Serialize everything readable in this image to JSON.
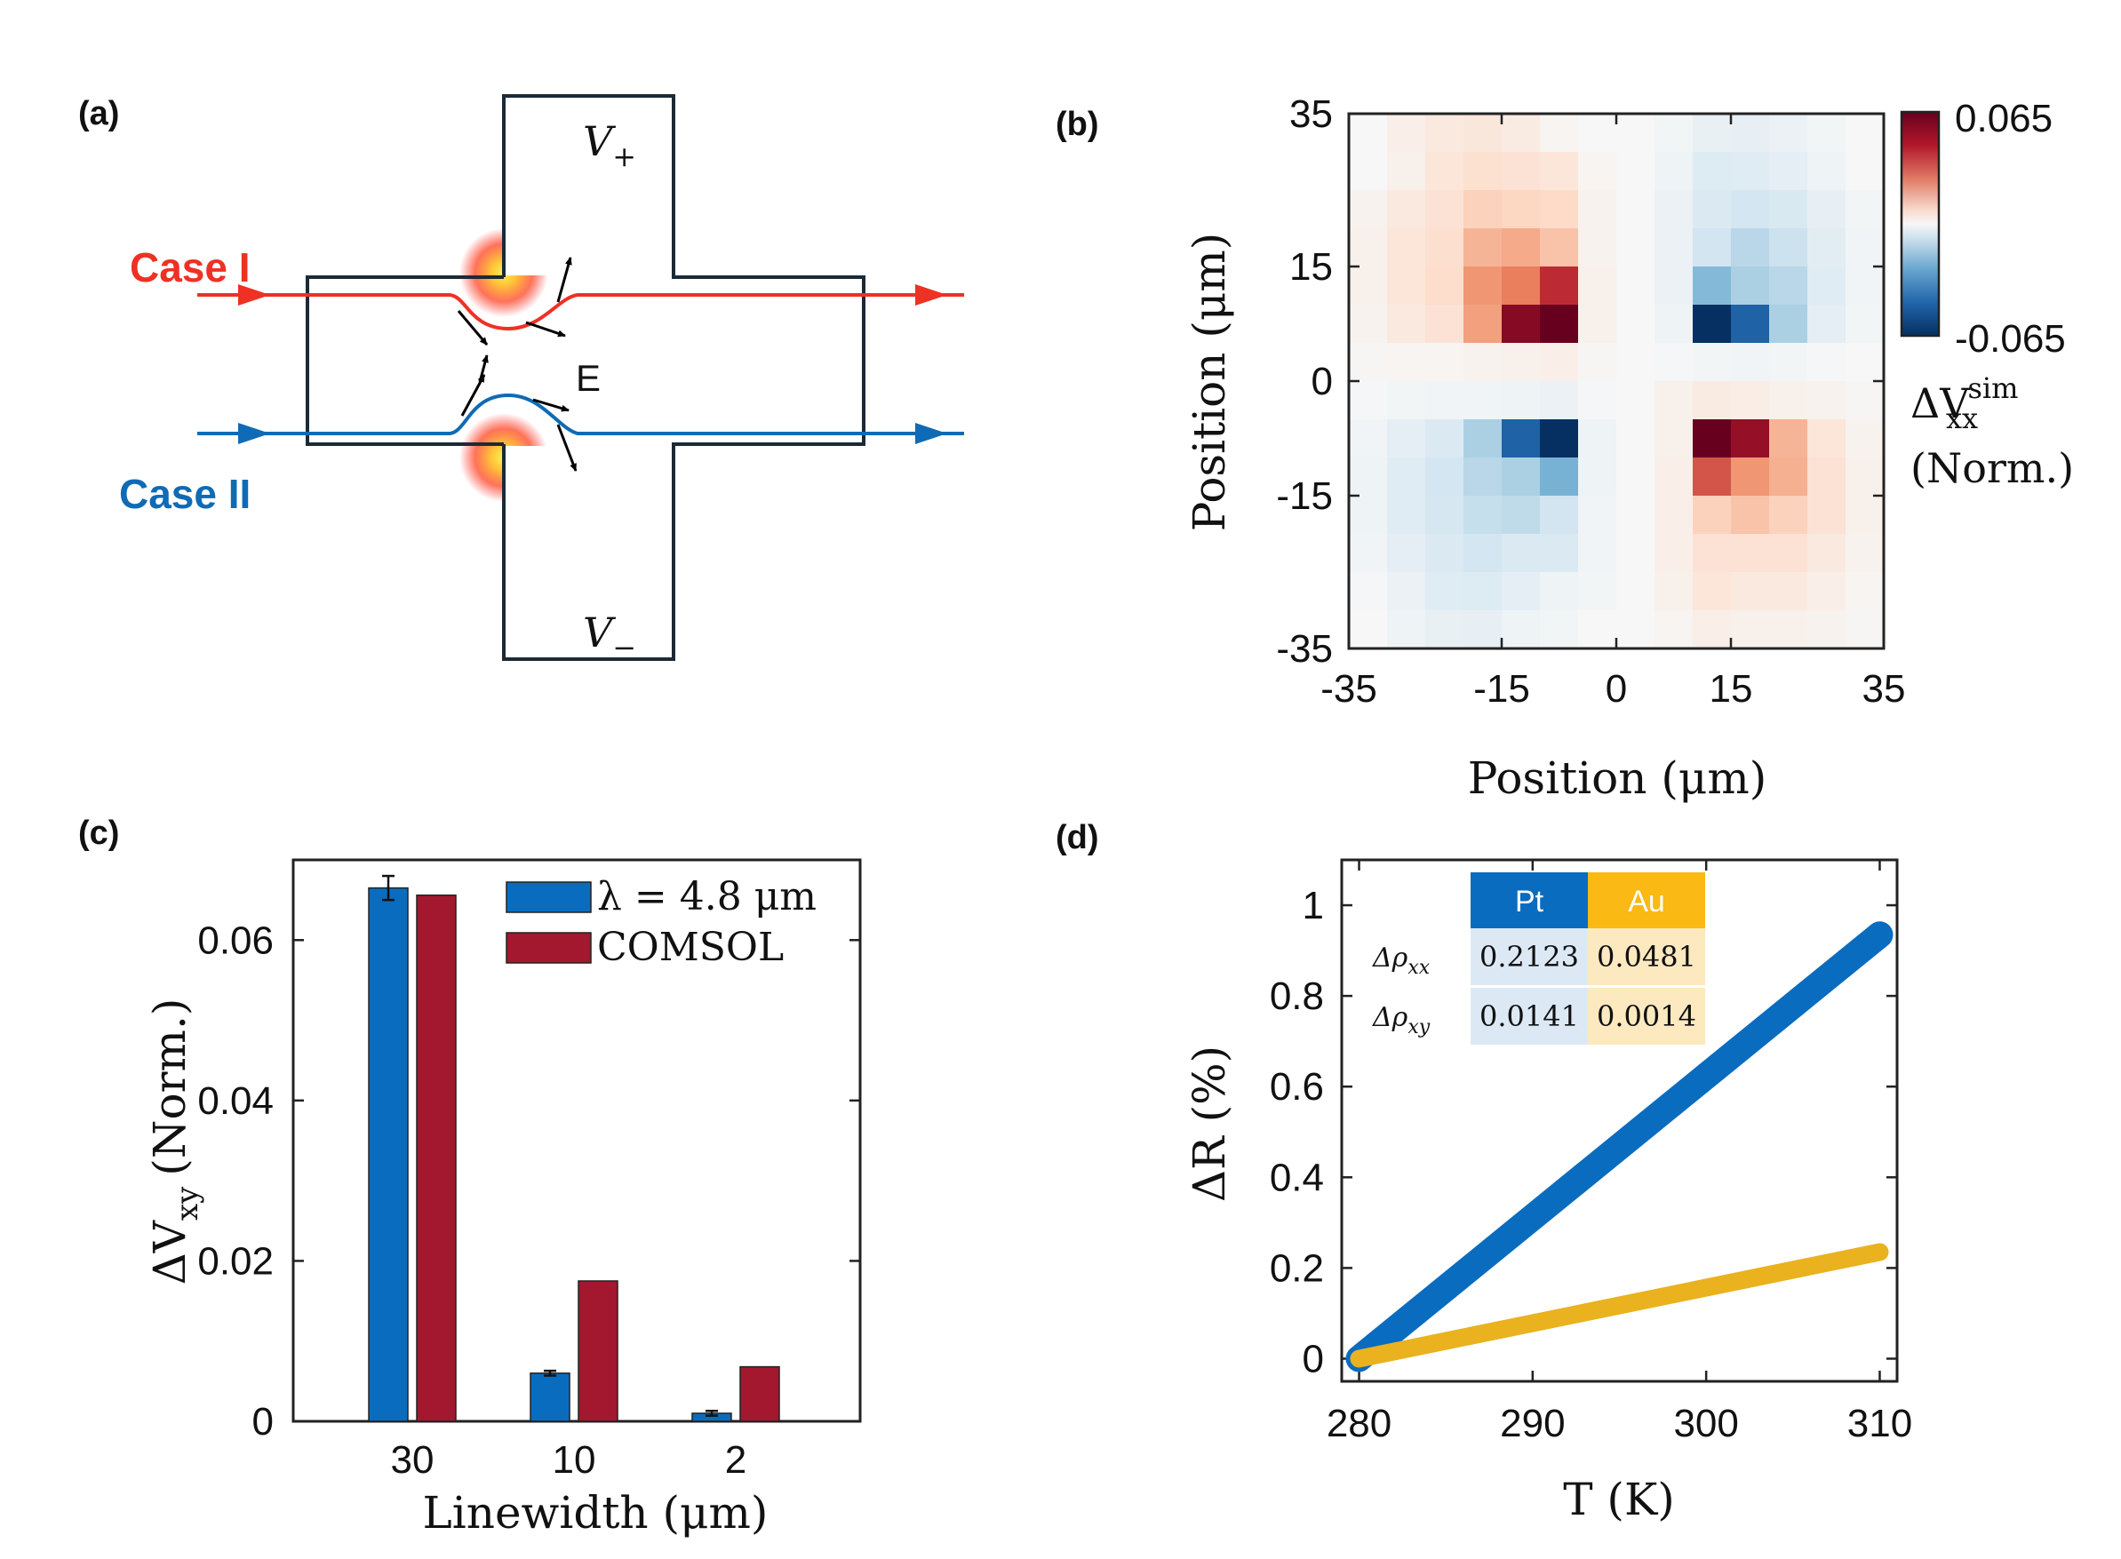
{
  "panel_labels": {
    "a": "(a)",
    "b": "(b)",
    "c": "(c)",
    "d": "(d)"
  },
  "colors": {
    "red": "#ee3124",
    "blue": "#0f6bb5",
    "pt_blue": "#0a6cbf",
    "au_gold": "#e9b21e",
    "comsol_red": "#a3172f",
    "frame": "#1c2a36"
  },
  "diagram": {
    "case1_label": "Case I",
    "case2_label": "Case II",
    "field_label": "E",
    "vplus": "V",
    "vplus_sub": "+",
    "vminus": "V",
    "vminus_sub": "−"
  },
  "chart_data": [
    {
      "panel": "b",
      "type": "heatmap",
      "xlabel": "Position (μm)",
      "ylabel": "Position (μm)",
      "xlim": [
        -35,
        35
      ],
      "ylim": [
        -35,
        35
      ],
      "x_ticks": [
        "-35",
        "-15",
        "0",
        "15",
        "35"
      ],
      "y_ticks": [
        "35",
        "15",
        "0",
        "-15",
        "-35"
      ],
      "colorbar": {
        "max_label": "0.065",
        "min_label": "-0.065",
        "title": "ΔV",
        "title_sub": "xx",
        "title_sup": "sim",
        "title_unit": "(Norm.)",
        "min": -0.065,
        "max": 0.065
      },
      "grid_values": [
        [
          0.0,
          0.005,
          0.008,
          0.009,
          0.007,
          0.002,
          0.0,
          0.0,
          -0.002,
          -0.006,
          -0.007,
          -0.005,
          -0.002,
          0.0
        ],
        [
          0.0,
          0.004,
          0.01,
          0.013,
          0.012,
          0.01,
          0.002,
          0.0,
          -0.004,
          -0.011,
          -0.01,
          -0.008,
          -0.004,
          0.0
        ],
        [
          0.003,
          0.008,
          0.012,
          0.018,
          0.017,
          0.016,
          0.003,
          0.0,
          -0.005,
          -0.012,
          -0.015,
          -0.013,
          -0.007,
          -0.002
        ],
        [
          0.004,
          0.01,
          0.014,
          0.024,
          0.026,
          0.021,
          0.003,
          0.0,
          -0.005,
          -0.016,
          -0.02,
          -0.017,
          -0.009,
          -0.003
        ],
        [
          0.004,
          0.01,
          0.015,
          0.03,
          0.034,
          0.046,
          0.004,
          0.0,
          -0.005,
          -0.028,
          -0.022,
          -0.02,
          -0.01,
          -0.003
        ],
        [
          0.003,
          0.008,
          0.012,
          0.028,
          0.058,
          0.065,
          0.004,
          0.0,
          -0.004,
          -0.065,
          -0.05,
          -0.022,
          -0.008,
          -0.002
        ],
        [
          0.001,
          0.002,
          0.002,
          0.003,
          0.004,
          0.005,
          0.001,
          0.0,
          -0.001,
          -0.002,
          -0.003,
          -0.002,
          -0.001,
          0.0
        ],
        [
          -0.001,
          -0.002,
          -0.003,
          -0.003,
          -0.004,
          -0.005,
          -0.001,
          0.0,
          0.004,
          0.007,
          0.006,
          0.004,
          0.003,
          0.001
        ],
        [
          -0.003,
          -0.008,
          -0.012,
          -0.022,
          -0.05,
          -0.065,
          -0.004,
          0.0,
          0.004,
          0.065,
          0.055,
          0.024,
          0.01,
          0.003
        ],
        [
          -0.004,
          -0.01,
          -0.015,
          -0.02,
          -0.022,
          -0.03,
          -0.004,
          0.0,
          0.005,
          0.04,
          0.03,
          0.025,
          0.012,
          0.004
        ],
        [
          -0.004,
          -0.01,
          -0.014,
          -0.018,
          -0.019,
          -0.016,
          -0.003,
          0.0,
          0.005,
          0.018,
          0.021,
          0.018,
          0.012,
          0.004
        ],
        [
          -0.003,
          -0.008,
          -0.012,
          -0.015,
          -0.012,
          -0.012,
          -0.003,
          0.0,
          0.005,
          0.012,
          0.012,
          0.012,
          0.008,
          0.003
        ],
        [
          -0.001,
          -0.005,
          -0.01,
          -0.011,
          -0.008,
          -0.004,
          -0.002,
          0.0,
          0.004,
          0.01,
          0.008,
          0.008,
          0.005,
          0.002
        ],
        [
          0.0,
          -0.004,
          -0.006,
          -0.007,
          -0.004,
          -0.002,
          0.0,
          0.0,
          0.002,
          0.005,
          0.004,
          0.004,
          0.003,
          0.001
        ]
      ]
    },
    {
      "panel": "c",
      "type": "bar",
      "xlabel": "Linewidth (μm)",
      "ylabel": "ΔV",
      "ylabel_sub": "xy",
      "ylabel_unit": "(Norm.)",
      "categories": [
        "30",
        "10",
        "2"
      ],
      "ylim": [
        0,
        0.07
      ],
      "y_ticks": [
        "0",
        "0.02",
        "0.04",
        "0.06"
      ],
      "series": [
        {
          "name": "λ = 4.8 μm",
          "values": [
            0.0665,
            0.006,
            0.001
          ],
          "errors": [
            0.0015,
            0.0003,
            0.0003
          ]
        },
        {
          "name": "COMSOL",
          "values": [
            0.0656,
            0.0175,
            0.0068
          ]
        }
      ]
    },
    {
      "panel": "d",
      "type": "line",
      "xlabel": "T (K)",
      "ylabel": "ΔR (%)",
      "xlim": [
        279,
        311
      ],
      "ylim": [
        -0.05,
        1.1
      ],
      "x_ticks": [
        "280",
        "290",
        "300",
        "310"
      ],
      "y_ticks": [
        "0",
        "0.2",
        "0.4",
        "0.6",
        "0.8",
        "1"
      ],
      "series": [
        {
          "name": "Pt",
          "x": [
            280,
            310
          ],
          "y": [
            0.0,
            0.935
          ]
        },
        {
          "name": "Au",
          "x": [
            280,
            310
          ],
          "y": [
            0.0,
            0.235
          ]
        }
      ],
      "table": {
        "headers": [
          "Pt",
          "Au"
        ],
        "row_labels": [
          "Δρ",
          "Δρ"
        ],
        "row_subs": [
          "xx",
          "xy"
        ],
        "rows": [
          [
            "0.2123",
            "0.0481"
          ],
          [
            "0.0141",
            "0.0014"
          ]
        ]
      }
    }
  ]
}
